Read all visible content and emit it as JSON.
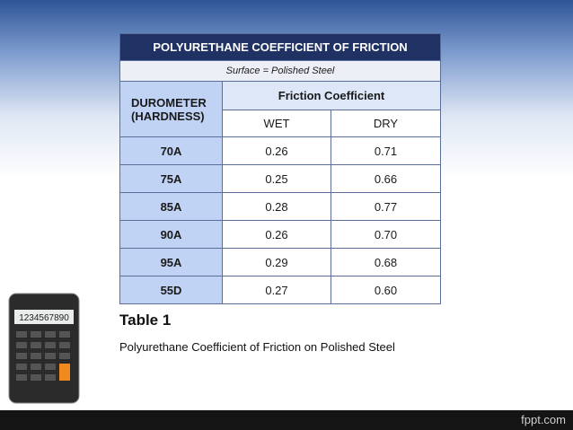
{
  "header": {
    "title": "POLYURETHANE COEFFICIENT OF FRICTION",
    "subtitle": "Surface = Polished Steel"
  },
  "table": {
    "row_header": "DUROMETER (HARDNESS)",
    "group_header": "Friction Coefficient",
    "subheaders": [
      "WET",
      "DRY"
    ],
    "rows": [
      [
        "70A",
        "0.26",
        "0.71"
      ],
      [
        "75A",
        "0.25",
        "0.66"
      ],
      [
        "85A",
        "0.28",
        "0.77"
      ],
      [
        "90A",
        "0.26",
        "0.70"
      ],
      [
        "95A",
        "0.29",
        "0.68"
      ],
      [
        "55D",
        "0.27",
        "0.60"
      ]
    ]
  },
  "caption": {
    "label": "Table 1",
    "text": "Polyurethane Coefficient of  Friction on Polished Steel"
  },
  "calculator_display": "1234567890",
  "footer_brand": "fppt.com"
}
